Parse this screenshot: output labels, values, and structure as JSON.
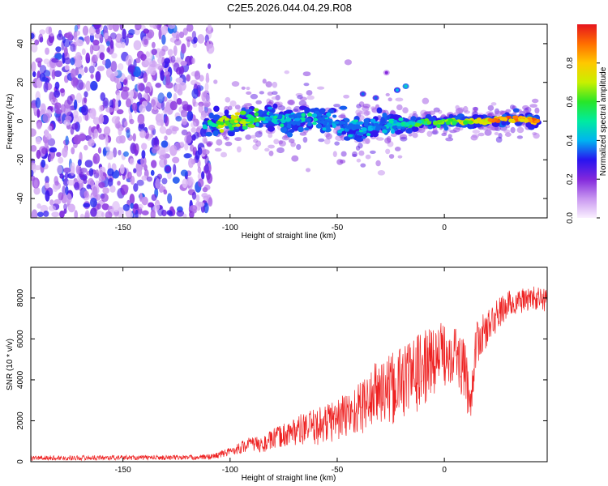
{
  "chart_data": [
    {
      "type": "heatmap",
      "title": "C2E5.2026.044.04.29.R08",
      "xlabel": "Height of straight line (km)",
      "ylabel": "Frequency (Hz)",
      "xlim": [
        -193,
        48
      ],
      "ylim": [
        -50,
        50
      ],
      "x_ticks": [
        -150,
        -100,
        -50,
        0
      ],
      "y_ticks": [
        -40,
        -20,
        0,
        20,
        40
      ],
      "colorbar": {
        "label": "Normalized spectral amplitude",
        "range": [
          0,
          1
        ],
        "ticks": [
          0.0,
          0.2,
          0.4,
          0.6,
          0.8
        ]
      },
      "noise_region": {
        "x": [
          -193,
          -109
        ],
        "amplitude": 0.3
      },
      "ridge": [
        {
          "x": -112,
          "y": -2,
          "z": 0.55
        },
        {
          "x": -105,
          "y": -1,
          "z": 0.75
        },
        {
          "x": -98,
          "y": 0,
          "z": 0.8
        },
        {
          "x": -90,
          "y": 1,
          "z": 0.7
        },
        {
          "x": -82,
          "y": 2,
          "z": 0.55
        },
        {
          "x": -76,
          "y": 1,
          "z": 0.55
        },
        {
          "x": -70,
          "y": 0,
          "z": 0.5
        },
        {
          "x": -62,
          "y": 1,
          "z": 0.55
        },
        {
          "x": -55,
          "y": 0,
          "z": 0.45
        },
        {
          "x": -48,
          "y": -3,
          "z": 0.45
        },
        {
          "x": -40,
          "y": -4,
          "z": 0.5
        },
        {
          "x": -32,
          "y": -3,
          "z": 0.45
        },
        {
          "x": -25,
          "y": -2,
          "z": 0.5
        },
        {
          "x": -18,
          "y": -2,
          "z": 0.6
        },
        {
          "x": -10,
          "y": -1,
          "z": 0.7
        },
        {
          "x": -3,
          "y": -1,
          "z": 0.75
        },
        {
          "x": 5,
          "y": 0,
          "z": 0.8
        },
        {
          "x": 12,
          "y": 0,
          "z": 0.85
        },
        {
          "x": 20,
          "y": 0,
          "z": 0.9
        },
        {
          "x": 28,
          "y": 1,
          "z": 0.95
        },
        {
          "x": 36,
          "y": 1,
          "z": 0.95
        },
        {
          "x": 44,
          "y": 0,
          "z": 0.95
        }
      ],
      "secondary_tracks": [
        {
          "x": -38,
          "y": 14,
          "z": 0.25
        },
        {
          "x": -32,
          "y": 12,
          "z": 0.25
        },
        {
          "x": -22,
          "y": 16,
          "z": 0.3
        },
        {
          "x": -18,
          "y": 18,
          "z": 0.35
        },
        {
          "x": -27,
          "y": 25,
          "z": 0.1
        }
      ]
    },
    {
      "type": "line",
      "xlabel": "Height of straight line (km)",
      "ylabel": "SNR (10 * v/v)",
      "xlim": [
        -193,
        48
      ],
      "ylim": [
        0,
        9500
      ],
      "x_ticks": [
        -150,
        -100,
        -50,
        0
      ],
      "y_ticks": [
        0,
        2000,
        4000,
        6000,
        8000
      ],
      "color": "#ee2222",
      "series": [
        {
          "x": [
            -193,
            -170,
            -150,
            -130,
            -115,
            -108,
            -100,
            -95,
            -90,
            -85,
            -80,
            -75,
            -70,
            -65,
            -60,
            -55,
            -50,
            -45,
            -40,
            -35,
            -30,
            -25,
            -20,
            -15,
            -10,
            -5,
            0,
            5,
            10,
            12,
            15,
            20,
            25,
            30,
            35,
            40,
            48
          ],
          "values": [
            180,
            190,
            200,
            200,
            210,
            250,
            500,
            700,
            900,
            800,
            1100,
            1300,
            1500,
            1600,
            1700,
            1900,
            2100,
            2300,
            2600,
            3000,
            3500,
            3400,
            4000,
            4200,
            4500,
            5000,
            5300,
            5400,
            4200,
            2800,
            5800,
            6500,
            7200,
            7700,
            7800,
            8000,
            7900
          ],
          "spread": [
            120,
            120,
            120,
            120,
            120,
            150,
            200,
            300,
            350,
            400,
            500,
            600,
            700,
            800,
            900,
            1000,
            1100,
            1200,
            1300,
            1500,
            1700,
            1800,
            1900,
            1900,
            1900,
            1700,
            1600,
            1500,
            1500,
            1000,
            1100,
            900,
            800,
            700,
            600,
            600,
            600
          ]
        }
      ]
    }
  ]
}
